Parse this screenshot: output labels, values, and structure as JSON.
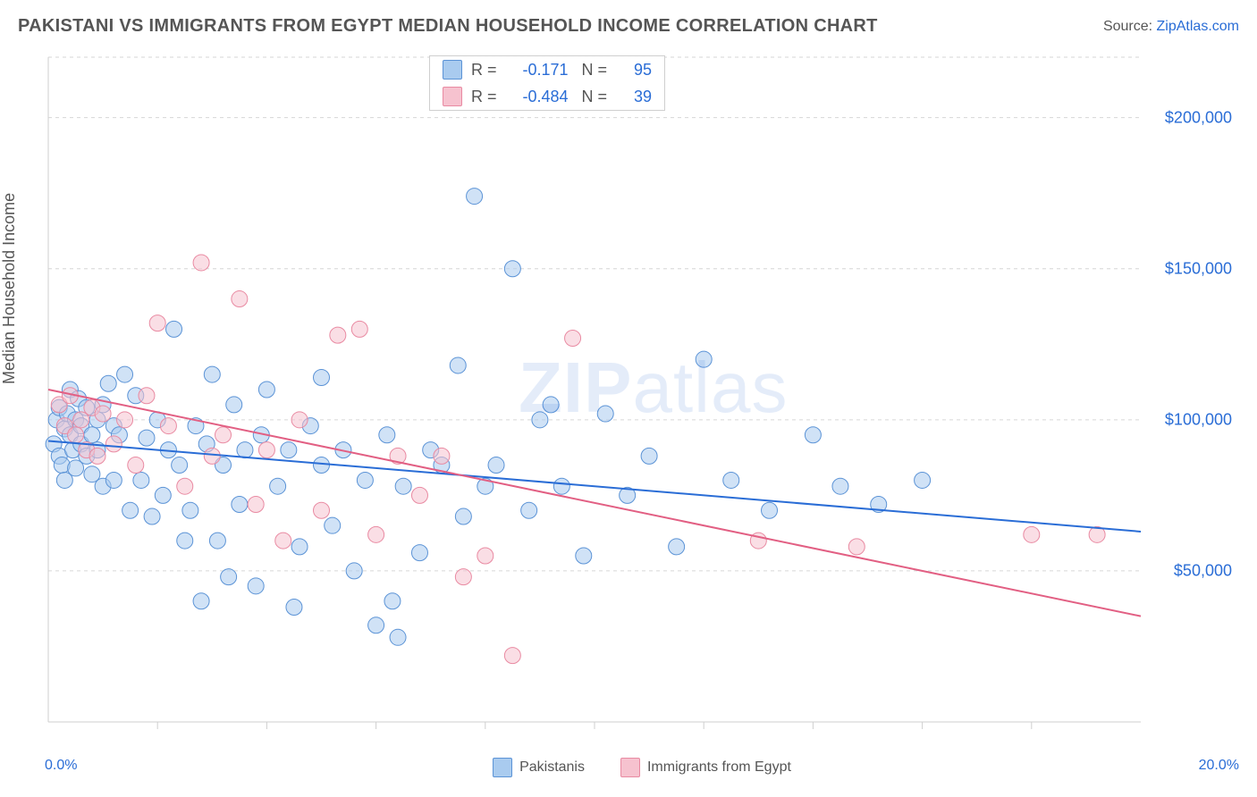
{
  "title": "PAKISTANI VS IMMIGRANTS FROM EGYPT MEDIAN HOUSEHOLD INCOME CORRELATION CHART",
  "source_prefix": "Source: ",
  "source_name": "ZipAtlas.com",
  "ylabel": "Median Household Income",
  "watermark_bold": "ZIP",
  "watermark_rest": "atlas",
  "chart": {
    "type": "scatter",
    "background_color": "#ffffff",
    "grid_color": "#d6d6d6",
    "axis_color": "#cfcfcf",
    "tick_color": "#cfcfcf",
    "xlim": [
      0,
      20
    ],
    "ylim": [
      0,
      220000
    ],
    "xtick_labels": [
      "0.0%",
      "20.0%"
    ],
    "xtick_minor_positions": [
      2,
      4,
      6,
      8,
      10,
      12,
      14,
      16,
      18
    ],
    "yticks": [
      50000,
      100000,
      150000,
      200000
    ],
    "ytick_labels": [
      "$50,000",
      "$100,000",
      "$150,000",
      "$200,000"
    ],
    "marker_radius": 9,
    "marker_fill_opacity": 0.55,
    "line_width": 2,
    "label_fontsize": 18,
    "tick_label_color": "#2a6dd6",
    "series": [
      {
        "label": "Pakistanis",
        "color_fill": "#a9cbef",
        "color_stroke": "#5b93d6",
        "line_color": "#2a6dd6",
        "R": "-0.171",
        "N": "95",
        "trend": {
          "y_at_x0": 93000,
          "y_at_x20": 63000
        },
        "points": [
          [
            0.1,
            92000
          ],
          [
            0.15,
            100000
          ],
          [
            0.2,
            88000
          ],
          [
            0.2,
            104000
          ],
          [
            0.25,
            85000
          ],
          [
            0.3,
            97000
          ],
          [
            0.3,
            80000
          ],
          [
            0.35,
            102000
          ],
          [
            0.4,
            95000
          ],
          [
            0.4,
            110000
          ],
          [
            0.45,
            90000
          ],
          [
            0.5,
            100000
          ],
          [
            0.5,
            84000
          ],
          [
            0.55,
            107000
          ],
          [
            0.6,
            92000
          ],
          [
            0.6,
            98000
          ],
          [
            0.7,
            88000
          ],
          [
            0.7,
            104000
          ],
          [
            0.8,
            95000
          ],
          [
            0.8,
            82000
          ],
          [
            0.9,
            100000
          ],
          [
            0.9,
            90000
          ],
          [
            1.0,
            105000
          ],
          [
            1.0,
            78000
          ],
          [
            1.1,
            112000
          ],
          [
            1.2,
            80000
          ],
          [
            1.2,
            98000
          ],
          [
            1.3,
            95000
          ],
          [
            1.4,
            115000
          ],
          [
            1.5,
            70000
          ],
          [
            1.6,
            108000
          ],
          [
            1.7,
            80000
          ],
          [
            1.8,
            94000
          ],
          [
            1.9,
            68000
          ],
          [
            2.0,
            100000
          ],
          [
            2.1,
            75000
          ],
          [
            2.2,
            90000
          ],
          [
            2.3,
            130000
          ],
          [
            2.4,
            85000
          ],
          [
            2.6,
            70000
          ],
          [
            2.7,
            98000
          ],
          [
            2.8,
            40000
          ],
          [
            2.9,
            92000
          ],
          [
            3.0,
            115000
          ],
          [
            3.1,
            60000
          ],
          [
            3.2,
            85000
          ],
          [
            3.4,
            105000
          ],
          [
            3.5,
            72000
          ],
          [
            3.6,
            90000
          ],
          [
            3.8,
            45000
          ],
          [
            3.9,
            95000
          ],
          [
            4.0,
            110000
          ],
          [
            4.2,
            78000
          ],
          [
            4.4,
            90000
          ],
          [
            4.6,
            58000
          ],
          [
            4.8,
            98000
          ],
          [
            5.0,
            85000
          ],
          [
            5.0,
            114000
          ],
          [
            5.2,
            65000
          ],
          [
            5.4,
            90000
          ],
          [
            5.6,
            50000
          ],
          [
            5.8,
            80000
          ],
          [
            6.0,
            32000
          ],
          [
            6.2,
            95000
          ],
          [
            6.3,
            40000
          ],
          [
            6.5,
            78000
          ],
          [
            6.8,
            56000
          ],
          [
            7.0,
            90000
          ],
          [
            7.2,
            85000
          ],
          [
            7.5,
            118000
          ],
          [
            7.6,
            68000
          ],
          [
            7.8,
            174000
          ],
          [
            8.0,
            78000
          ],
          [
            8.2,
            85000
          ],
          [
            8.5,
            150000
          ],
          [
            8.8,
            70000
          ],
          [
            9.0,
            100000
          ],
          [
            9.2,
            105000
          ],
          [
            9.4,
            78000
          ],
          [
            9.8,
            55000
          ],
          [
            10.2,
            102000
          ],
          [
            10.6,
            75000
          ],
          [
            11.0,
            88000
          ],
          [
            11.5,
            58000
          ],
          [
            12.0,
            120000
          ],
          [
            12.5,
            80000
          ],
          [
            13.2,
            70000
          ],
          [
            14.0,
            95000
          ],
          [
            14.5,
            78000
          ],
          [
            15.2,
            72000
          ],
          [
            16.0,
            80000
          ],
          [
            6.4,
            28000
          ],
          [
            4.5,
            38000
          ],
          [
            3.3,
            48000
          ],
          [
            2.5,
            60000
          ]
        ]
      },
      {
        "label": "Immigrants from Egypt",
        "color_fill": "#f6c2cf",
        "color_stroke": "#e98aa2",
        "line_color": "#e25f83",
        "R": "-0.484",
        "N": "39",
        "trend": {
          "y_at_x0": 110000,
          "y_at_x20": 35000
        },
        "points": [
          [
            0.2,
            105000
          ],
          [
            0.3,
            98000
          ],
          [
            0.4,
            108000
          ],
          [
            0.5,
            95000
          ],
          [
            0.6,
            100000
          ],
          [
            0.7,
            90000
          ],
          [
            0.8,
            104000
          ],
          [
            0.9,
            88000
          ],
          [
            1.0,
            102000
          ],
          [
            1.2,
            92000
          ],
          [
            1.4,
            100000
          ],
          [
            1.6,
            85000
          ],
          [
            1.8,
            108000
          ],
          [
            2.0,
            132000
          ],
          [
            2.2,
            98000
          ],
          [
            2.5,
            78000
          ],
          [
            2.8,
            152000
          ],
          [
            3.0,
            88000
          ],
          [
            3.2,
            95000
          ],
          [
            3.5,
            140000
          ],
          [
            3.8,
            72000
          ],
          [
            4.0,
            90000
          ],
          [
            4.3,
            60000
          ],
          [
            4.6,
            100000
          ],
          [
            5.0,
            70000
          ],
          [
            5.3,
            128000
          ],
          [
            5.7,
            130000
          ],
          [
            6.0,
            62000
          ],
          [
            6.4,
            88000
          ],
          [
            6.8,
            75000
          ],
          [
            7.2,
            88000
          ],
          [
            7.6,
            48000
          ],
          [
            8.0,
            55000
          ],
          [
            8.5,
            22000
          ],
          [
            9.6,
            127000
          ],
          [
            13.0,
            60000
          ],
          [
            14.8,
            58000
          ],
          [
            18.0,
            62000
          ],
          [
            19.2,
            62000
          ]
        ]
      }
    ]
  },
  "legend_bottom": [
    {
      "label": "Pakistanis",
      "fill": "#a9cbef",
      "stroke": "#5b93d6"
    },
    {
      "label": "Immigrants from Egypt",
      "fill": "#f6c2cf",
      "stroke": "#e98aa2"
    }
  ]
}
